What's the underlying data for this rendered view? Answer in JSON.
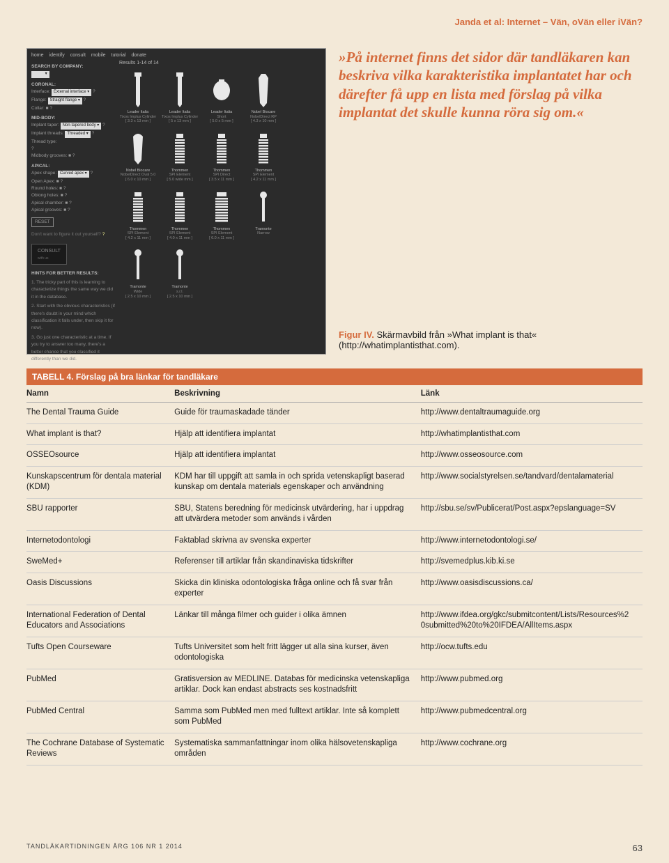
{
  "header": "Janda et al: Internet – Vän, oVän eller iVän?",
  "quote": "»På internet finns det sidor där tandläkaren kan beskriva vilka karakteristika implantatet har och därefter få upp en lista med förslag på vilka implantat det skulle kunna röra sig om.«",
  "figure": {
    "label": "Figur IV.",
    "caption": "Skärmavbild från »What implant is that« (http://whatimplantisthat.com)."
  },
  "screenshot": {
    "nav": [
      "home",
      "identify",
      "consult",
      "mobile",
      "tutorial",
      "donate"
    ],
    "search_label": "SEARCH BY COMPANY:",
    "results_label": "Results 1-14 of 14",
    "sections": {
      "coronal": "CORONAL:",
      "coronal_rows": [
        {
          "l": "Interface:",
          "v": "External interface"
        },
        {
          "l": "Flange:",
          "v": "Straight flange"
        },
        {
          "l": "Collar: ■ ?",
          "v": ""
        }
      ],
      "midbody": "MID-BODY:",
      "midbody_rows": [
        {
          "l": "Implant taper:",
          "v": "Non-tapered body"
        },
        {
          "l": "Implant threads:",
          "v": "Threaded"
        },
        {
          "l": "Thread type:",
          "v": ""
        },
        {
          "l": "?",
          "v": ""
        },
        {
          "l": "Midbody grooves: ■ ?",
          "v": ""
        }
      ],
      "apical": "APICAL:",
      "apical_rows": [
        {
          "l": "Apex shape:",
          "v": "Curved apex"
        },
        {
          "l": "Open Apex: ■ ?",
          "v": ""
        },
        {
          "l": "Round holes: ■ ?",
          "v": ""
        },
        {
          "l": "Oblong holes: ■ ?",
          "v": ""
        },
        {
          "l": "Apical chamber: ■ ?",
          "v": ""
        },
        {
          "l": "Apical grooves: ■ ?",
          "v": ""
        }
      ],
      "reset": "RESET",
      "dont": "Don't want to figure it out yourself?",
      "consult": "CONSULT",
      "withus": "with us",
      "hints": "HINTS FOR BETTER RESULTS:",
      "hints_items": [
        "1. The tricky part of this is learning to characterize things the same way we did it in the database.",
        "2. Start with the obvious characteristics (if there's doubt in your mind which classification it falls under, then skip it for now).",
        "3. Go just one characteristic at a time. If you try to answer too many, there's a better chance that you classified it differently than we did."
      ]
    },
    "implants": [
      {
        "brand": "Leader Italia",
        "name": "Tixos Implus Cylinder",
        "dim": "[ 3.3 x 13 mm ]",
        "shape": "cyl"
      },
      {
        "brand": "Leader Italia",
        "name": "Tixos Implus Cylinder",
        "dim": "[ 5 x 13 mm ]",
        "shape": "cyl"
      },
      {
        "brand": "Leader Italia",
        "name": "Short",
        "dim": "[ 5.0 x 5 mm ]",
        "shape": "short"
      },
      {
        "brand": "Nobel Biocare",
        "name": "NobelDirect RP",
        "dim": "[ 4.3 x 10 mm ]",
        "shape": "taper"
      },
      {
        "brand": "Nobel Biocare",
        "name": "NobelDirect Oval 5.0",
        "dim": "[ 6.0 x 10 mm ]",
        "shape": "oval"
      },
      {
        "brand": "Thommen",
        "name": "SPI Element",
        "dim": "[ 5.0 wide mm ]",
        "shape": "thr"
      },
      {
        "brand": "Thommen",
        "name": "SPI Direct",
        "dim": "[ 3.5 x 11 mm ]",
        "shape": "thr"
      },
      {
        "brand": "Thommen",
        "name": "SPI Element",
        "dim": "[ 4.2 x 11 mm ]",
        "shape": "thr"
      },
      {
        "brand": "Thommen",
        "name": "SPI Element",
        "dim": "[ 4.2 x 11 mm ]",
        "shape": "thr"
      },
      {
        "brand": "Thommen",
        "name": "SPI Element",
        "dim": "[ 4.0 x 11 mm ]",
        "shape": "thr"
      },
      {
        "brand": "Thommen",
        "name": "SPI Element",
        "dim": "[ 6.0 x 11 mm ]",
        "shape": "thr2"
      },
      {
        "brand": "Tramonte",
        "name": "Narrow",
        "dim": "",
        "shape": "pin"
      },
      {
        "brand": "Tramonte",
        "name": "Wide",
        "dim": "[ 2.5 x 10 mm ]",
        "shape": "pin"
      },
      {
        "brand": "Tramonte",
        "name": "s.r.l.",
        "dim": "[ 2.5 x 10 mm ]",
        "shape": "pin"
      }
    ]
  },
  "table": {
    "title_label": "TABELL 4.",
    "title": "Förslag på bra länkar för tandläkare",
    "columns": [
      "Namn",
      "Beskrivning",
      "Länk"
    ],
    "rows": [
      [
        "The Dental Trauma Guide",
        "Guide för traumaskadade tänder",
        "http://www.dentaltraumaguide.org"
      ],
      [
        "What implant is that?",
        "Hjälp att identifiera implantat",
        "http://whatimplantisthat.com"
      ],
      [
        "OSSEOsource",
        "Hjälp att identifiera implantat",
        "http://www.osseosource.com"
      ],
      [
        "Kunskapscentrum för dentala material (KDM)",
        "KDM har till uppgift att samla in och sprida vetenskapligt baserad kunskap om dentala materials egenskaper och användning",
        "http://www.socialstyrelsen.se/tandvard/dentalamaterial"
      ],
      [
        "SBU rapporter",
        "SBU, Statens beredning för medicinsk utvärdering, har i uppdrag att utvärdera metoder som används i vården",
        "http://sbu.se/sv/Publicerat/Post.aspx?epslanguage=SV"
      ],
      [
        "Internetodontologi",
        "Faktablad skrivna av svenska experter",
        "http://www.internetodontologi.se/"
      ],
      [
        "SweMed+",
        "Referenser till artiklar från skandinaviska tidskrifter",
        "http://svemedplus.kib.ki.se"
      ],
      [
        "Oasis Discussions",
        "Skicka din kliniska odontologiska fråga online och få svar från experter",
        "http://www.oasisdiscussions.ca/"
      ],
      [
        "International Federation of Dental Educators and Associations",
        "Länkar till många filmer och guider i olika ämnen",
        "http://www.ifdea.org/gkc/submitcontent/Lists/Resources%20submitted%20to%20IFDEA/AllItems.aspx"
      ],
      [
        "Tufts Open Courseware",
        "Tufts Universitet som helt fritt lägger ut alla sina kurser, även odontologiska",
        "http://ocw.tufts.edu"
      ],
      [
        "PubMed",
        "Gratisversion av MEDLINE. Databas för medicinska vetenskapliga artiklar. Dock kan endast abstracts ses kostnadsfritt",
        "http://www.pubmed.org"
      ],
      [
        "PubMed Central",
        "Samma som PubMed men med fulltext artiklar. Inte så komplett som PubMed",
        "http://www.pubmedcentral.org"
      ],
      [
        "The Cochrane Database of Systematic Reviews",
        "Systematiska sammanfattningar inom olika hälsovetenskapliga områden",
        "http://www.cochrane.org"
      ]
    ]
  },
  "footer": {
    "journal": "TANDLÄKARTIDNINGEN ÅRG 106 NR 1 2014",
    "page": "63"
  }
}
